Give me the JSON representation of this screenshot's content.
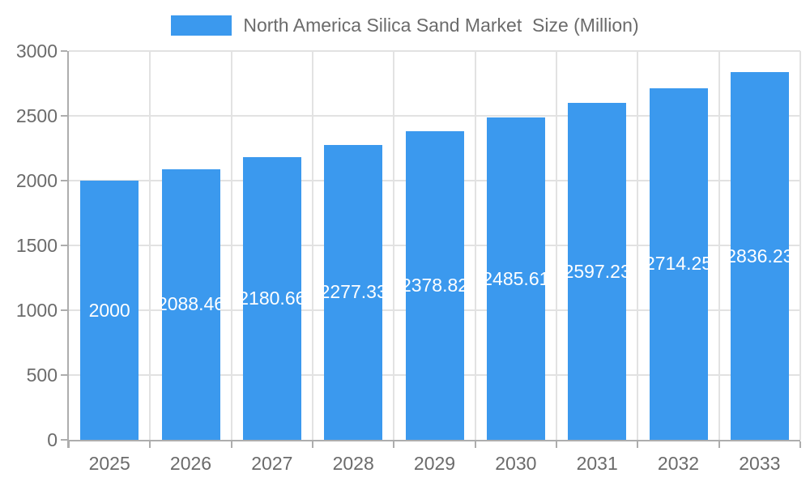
{
  "legend": {
    "label": "North America Silica Sand Market  Size (Million)"
  },
  "chart_data": {
    "type": "bar",
    "title": "North America Silica Sand Market  Size (Million)",
    "categories": [
      "2025",
      "2026",
      "2027",
      "2028",
      "2029",
      "2030",
      "2031",
      "2032",
      "2033"
    ],
    "values": [
      2000,
      2088.46,
      2180.66,
      2277.33,
      2378.82,
      2485.61,
      2597.23,
      2714.25,
      2836.23
    ],
    "bar_labels": [
      "2000",
      "2088.46",
      "2180.66",
      "2277.33",
      "2378.82",
      "2485.61",
      "2597.23",
      "2714.25",
      "2836.23"
    ],
    "xlabel": "",
    "ylabel": "",
    "ylim": [
      0,
      3000
    ],
    "ytick_step": 500,
    "ytick_labels": [
      "0",
      "500",
      "1000",
      "1500",
      "2000",
      "2500",
      "3000"
    ],
    "grid": true,
    "legend_position": "top",
    "colors": {
      "bar": "#3b99ee",
      "grid": "#e2e2e2",
      "axis": "#adadad",
      "tick_label": "#6b6b6b",
      "title": "#6b6b6b",
      "bar_label": "#ffffff",
      "background": "#ffffff"
    }
  }
}
